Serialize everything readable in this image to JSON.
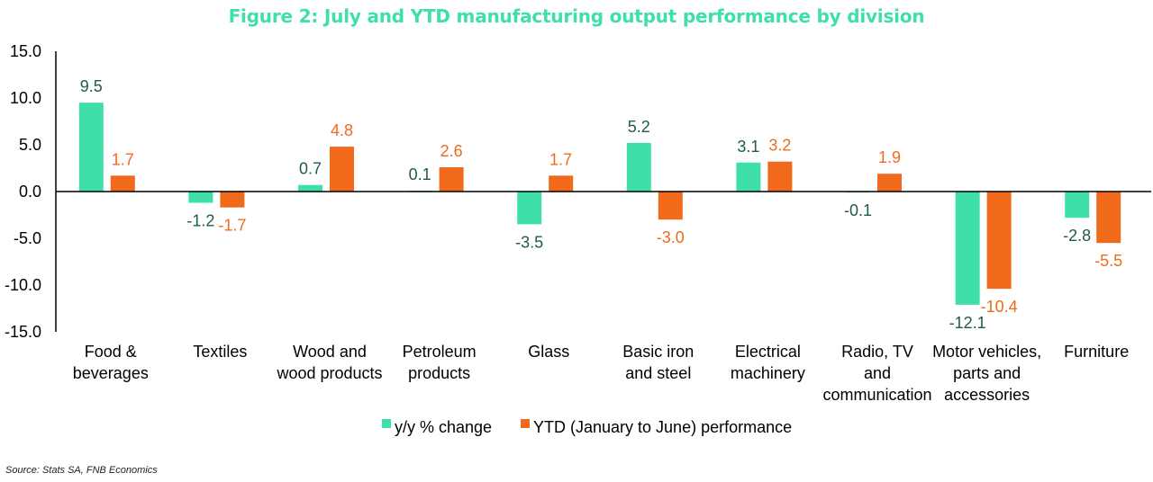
{
  "title": "Figure 2: July and YTD manufacturing output performance by division",
  "source": "Source: Stats SA, FNB Economics",
  "colors": {
    "yy": "#3ee0a8",
    "ytd": "#f16a1c",
    "yy_label": "#1f5a4a",
    "ytd_label": "#f16a1c",
    "axis": "#000000"
  },
  "chart_data": {
    "type": "bar",
    "title": "Figure 2: July and YTD manufacturing output performance by division",
    "categories": [
      [
        "Food &",
        "beverages"
      ],
      [
        "Textiles"
      ],
      [
        "Wood and",
        "wood products"
      ],
      [
        "Petroleum",
        "products"
      ],
      [
        "Glass"
      ],
      [
        "Basic iron",
        "and steel"
      ],
      [
        "Electrical",
        "machinery"
      ],
      [
        "Radio, TV",
        "and",
        "communication"
      ],
      [
        "Motor vehicles,",
        "parts and",
        "accessories"
      ],
      [
        "Furniture"
      ]
    ],
    "series": [
      {
        "name": "y/y % change",
        "values": [
          9.5,
          -1.2,
          0.7,
          0.1,
          -3.5,
          5.2,
          3.1,
          -0.1,
          -12.1,
          -2.8
        ]
      },
      {
        "name": "YTD (January to June) performance",
        "values": [
          1.7,
          -1.7,
          4.8,
          2.6,
          1.7,
          -3.0,
          3.2,
          1.9,
          -10.4,
          -5.5
        ]
      }
    ],
    "ylim": [
      -15,
      15
    ],
    "yticks": [
      "15.0",
      "10.0",
      "5.0",
      "0.0",
      "-5.0",
      "-10.0",
      "-15.0"
    ],
    "ytick_values": [
      15,
      10,
      5,
      0,
      -5,
      -10,
      -15
    ],
    "legend_position": "bottom",
    "grid": false
  }
}
